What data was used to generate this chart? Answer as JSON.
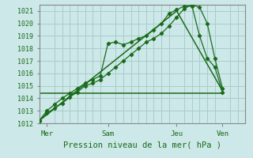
{
  "bg_color": "#cce8e8",
  "grid_color": "#aacccc",
  "line_color": "#1a6b1a",
  "xlabel": "Pression niveau de la mer( hPa )",
  "ylim": [
    1012,
    1021.5
  ],
  "yticks": [
    1012,
    1013,
    1014,
    1015,
    1016,
    1017,
    1018,
    1019,
    1020,
    1021
  ],
  "xlim": [
    0,
    108
  ],
  "day_labels": [
    "Mer",
    "Sam",
    "Jeu",
    "Ven"
  ],
  "day_positions": [
    4,
    36,
    72,
    96
  ],
  "minor_xticks": [
    0,
    4,
    8,
    12,
    16,
    20,
    24,
    28,
    32,
    36,
    40,
    44,
    48,
    52,
    56,
    60,
    64,
    68,
    72,
    76,
    80,
    84,
    88,
    92,
    96,
    100,
    104,
    108
  ],
  "line1_x": [
    0,
    4,
    8,
    12,
    16,
    20,
    24,
    28,
    32,
    36,
    40,
    44,
    48,
    52,
    56,
    60,
    64,
    68,
    72,
    76,
    80,
    84,
    88,
    92,
    96
  ],
  "line1_y": [
    1012.2,
    1012.8,
    1013.2,
    1013.6,
    1014.1,
    1014.5,
    1015.0,
    1015.2,
    1015.5,
    1016.0,
    1016.5,
    1017.0,
    1017.5,
    1018.0,
    1018.5,
    1018.8,
    1019.2,
    1019.8,
    1020.5,
    1021.2,
    1021.5,
    1021.3,
    1020.0,
    1017.2,
    1014.8
  ],
  "line2_x": [
    0,
    4,
    8,
    12,
    16,
    20,
    24,
    28,
    32,
    36,
    40,
    44,
    48,
    52,
    56,
    60,
    64,
    68,
    72,
    76,
    80,
    84,
    88,
    92,
    96
  ],
  "line2_y": [
    1012.2,
    1013.0,
    1013.5,
    1014.0,
    1014.4,
    1014.8,
    1015.2,
    1015.5,
    1015.8,
    1018.4,
    1018.5,
    1018.3,
    1018.5,
    1018.8,
    1019.0,
    1019.5,
    1020.0,
    1020.8,
    1021.1,
    1021.4,
    1021.4,
    1019.0,
    1017.2,
    1016.5,
    1014.5
  ],
  "line3_x": [
    0,
    36,
    72,
    96
  ],
  "line3_y": [
    1014.4,
    1014.4,
    1014.4,
    1014.4
  ],
  "line4_x": [
    0,
    72,
    96
  ],
  "line4_y": [
    1012.2,
    1021.0,
    1014.6
  ],
  "spine_color": "#888888"
}
